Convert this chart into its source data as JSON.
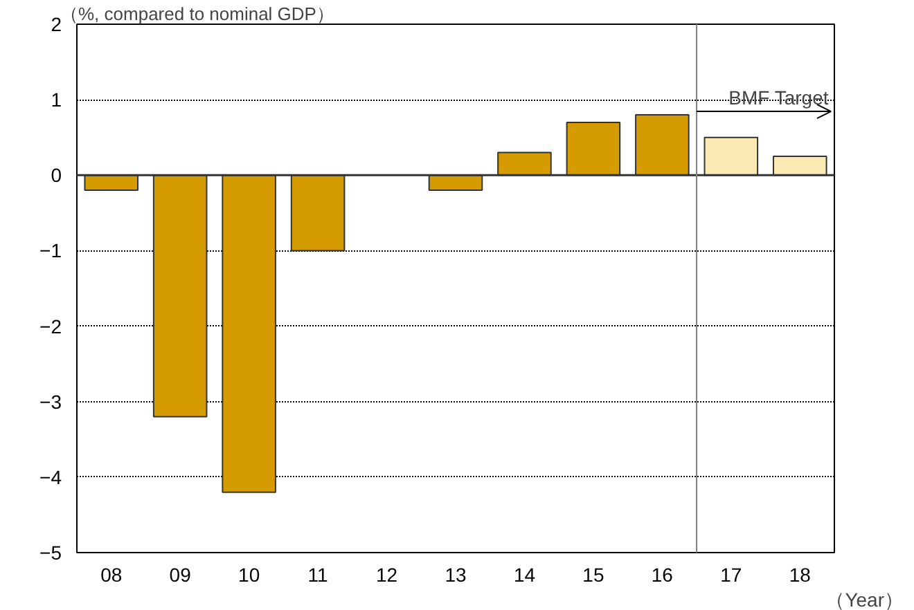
{
  "chart_data": {
    "type": "bar",
    "ylabel": "（%, compared to nominal GDP）",
    "xlabel": "（Year）",
    "categories": [
      "08",
      "09",
      "10",
      "11",
      "12",
      "13",
      "14",
      "15",
      "16",
      "17",
      "18"
    ],
    "values": [
      -0.2,
      -3.2,
      -4.2,
      -1.0,
      null,
      -0.2,
      0.3,
      0.7,
      0.8,
      0.5,
      0.25
    ],
    "colors": [
      "#d49c00",
      "#d49c00",
      "#d49c00",
      "#d49c00",
      "#d49c00",
      "#d49c00",
      "#d49c00",
      "#d49c00",
      "#d49c00",
      "#fbe9b4",
      "#fbe9b4"
    ],
    "ylim": [
      -5,
      2
    ],
    "yticks": [
      -5,
      -4,
      -3,
      -2,
      -1,
      0,
      1,
      2
    ],
    "grid": "y",
    "ref_lines": [
      {
        "axis": "x",
        "value": "17",
        "label": "BMF Target",
        "color": "#808080"
      }
    ]
  }
}
